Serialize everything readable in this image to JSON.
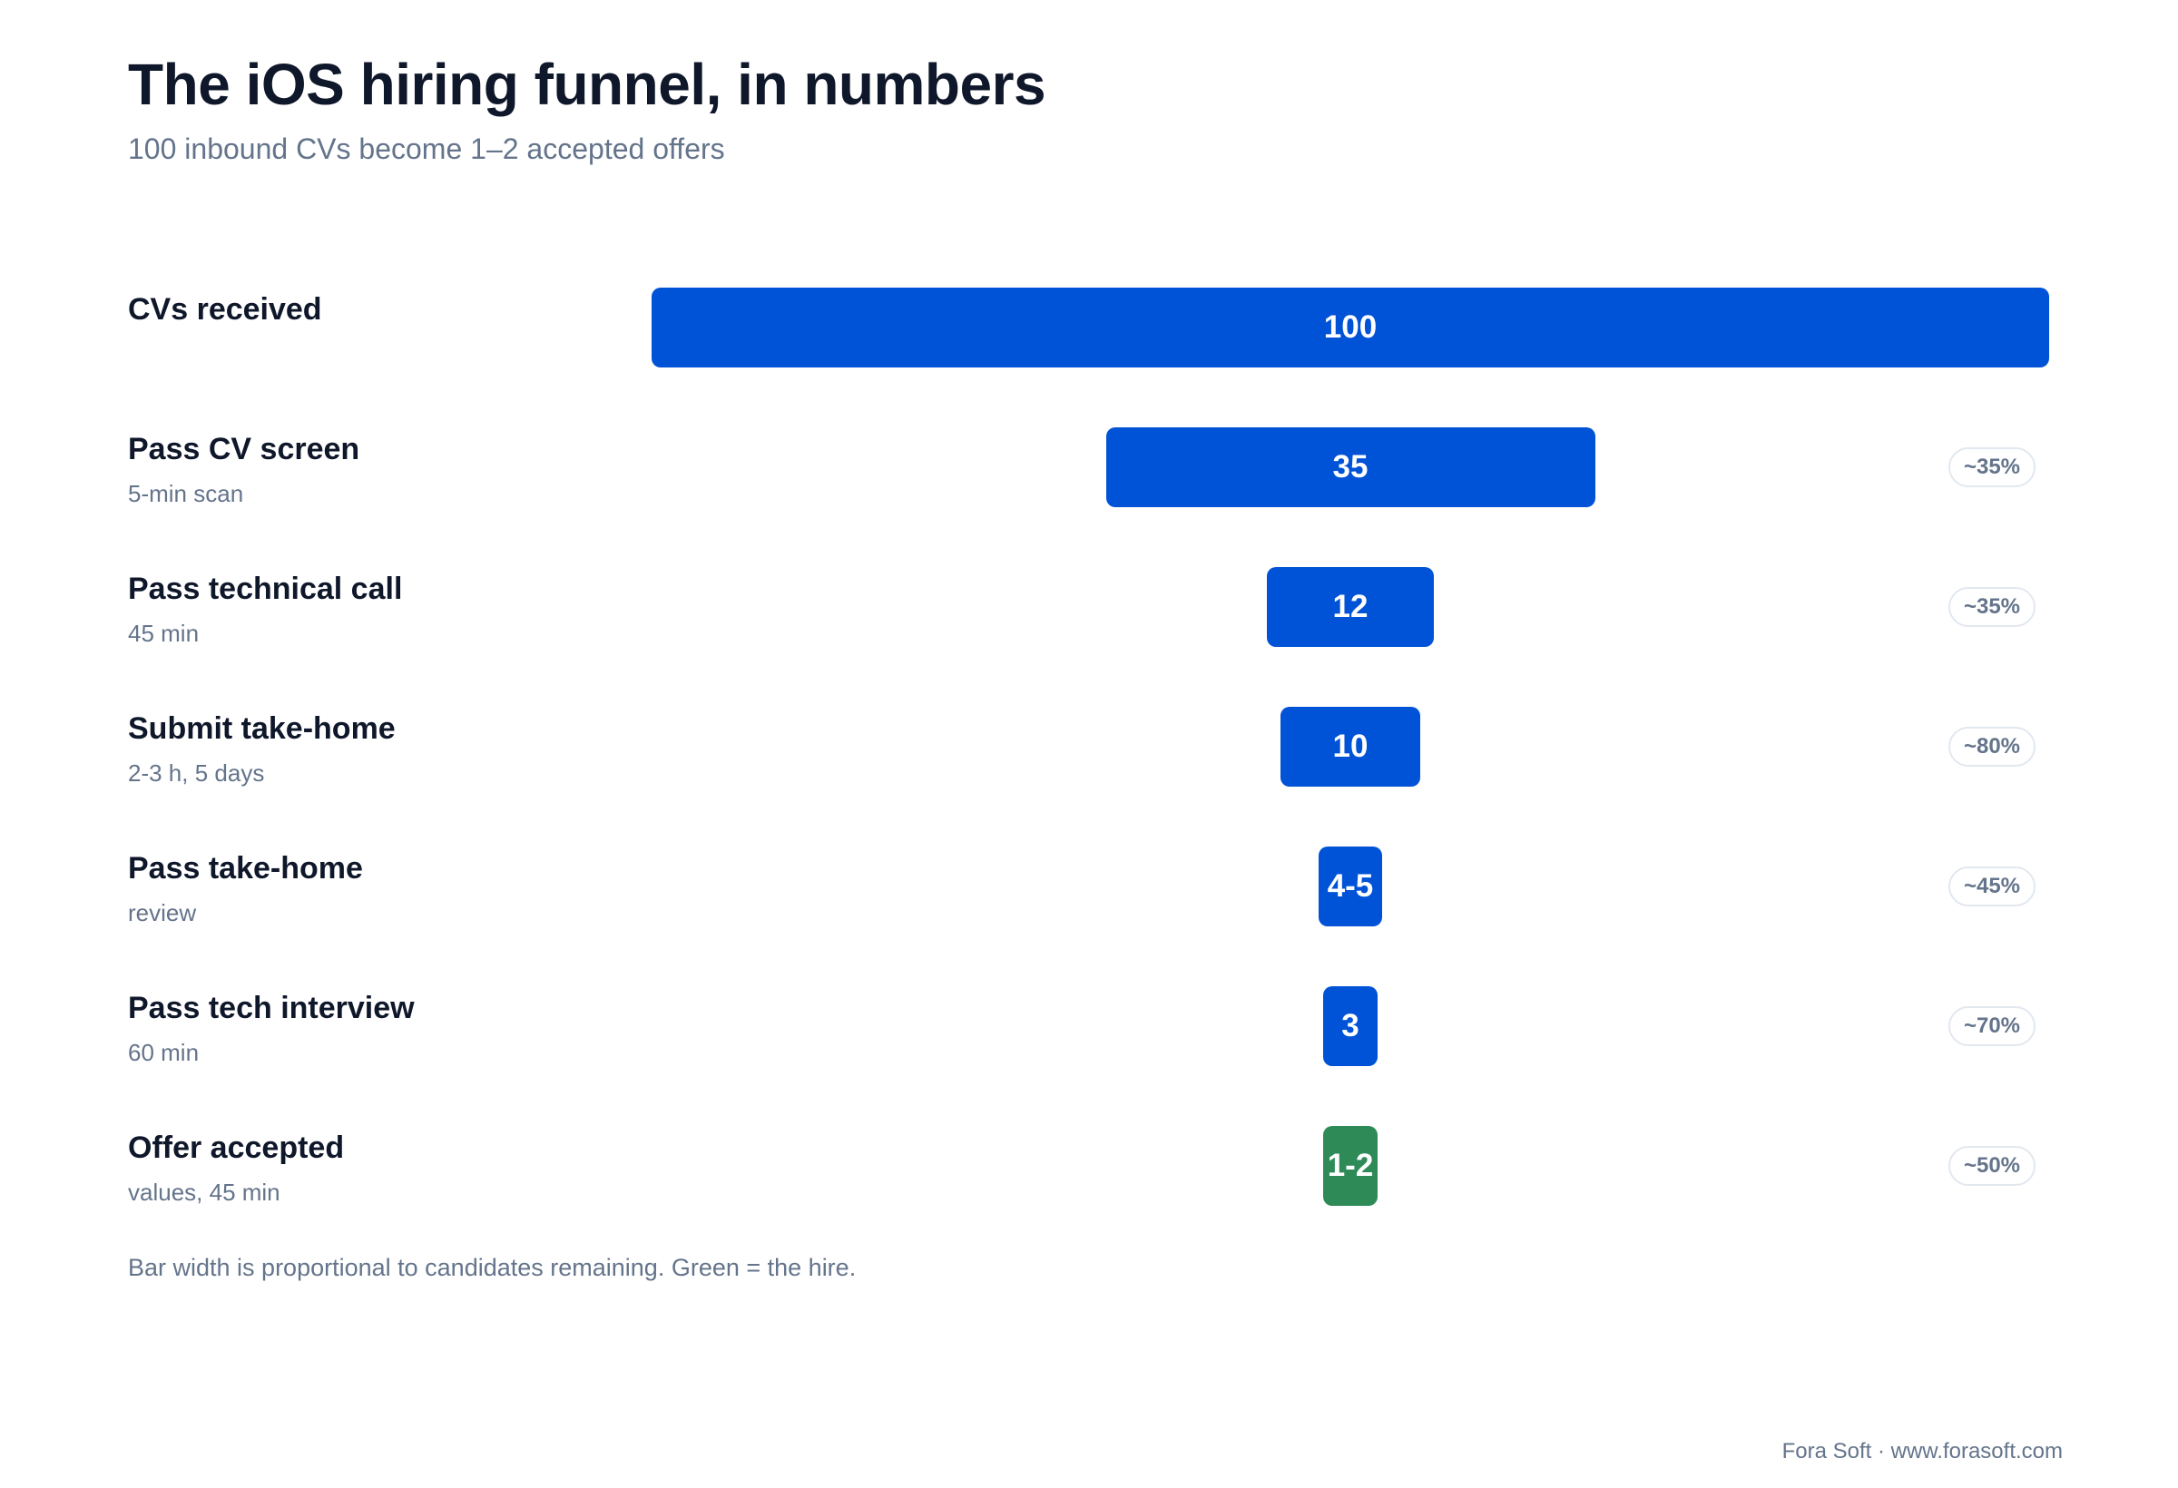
{
  "header": {
    "title": "The iOS hiring funnel, in numbers",
    "subtitle": "100 inbound CVs become 1–2 accepted offers"
  },
  "chart_data": {
    "type": "bar",
    "orientation": "horizontal-funnel",
    "title": "The iOS hiring funnel, in numbers",
    "subtitle": "100 inbound CVs become 1–2 accepted offers",
    "xlabel": "",
    "ylabel": "",
    "xlim": [
      0,
      100
    ],
    "grid": false,
    "legend": "none",
    "colors": {
      "stage": "#0052d6",
      "hire": "#2e8b57"
    },
    "stages": [
      {
        "label": "CVs received",
        "detail": "",
        "value": 100,
        "value_label": "100",
        "rate": "",
        "hire": false
      },
      {
        "label": "Pass CV screen",
        "detail": "5-min scan",
        "value": 35,
        "value_label": "35",
        "rate": "~35%",
        "hire": false
      },
      {
        "label": "Pass technical call",
        "detail": "45 min",
        "value": 12,
        "value_label": "12",
        "rate": "~35%",
        "hire": false
      },
      {
        "label": "Submit take-home",
        "detail": "2-3 h, 5 days",
        "value": 10,
        "value_label": "10",
        "rate": "~80%",
        "hire": false
      },
      {
        "label": "Pass take-home",
        "detail": "review",
        "value": 4.5,
        "value_label": "4-5",
        "rate": "~45%",
        "hire": false
      },
      {
        "label": "Pass tech interview",
        "detail": "60 min",
        "value": 3,
        "value_label": "3",
        "rate": "~70%",
        "hire": false
      },
      {
        "label": "Offer accepted",
        "detail": "values, 45 min",
        "value": 1.5,
        "value_label": "1-2",
        "rate": "~50%",
        "hire": true
      }
    ]
  },
  "footer": {
    "note": "Bar width is proportional to candidates remaining. Green = the hire.",
    "credit": "Fora Soft · www.forasoft.com"
  }
}
